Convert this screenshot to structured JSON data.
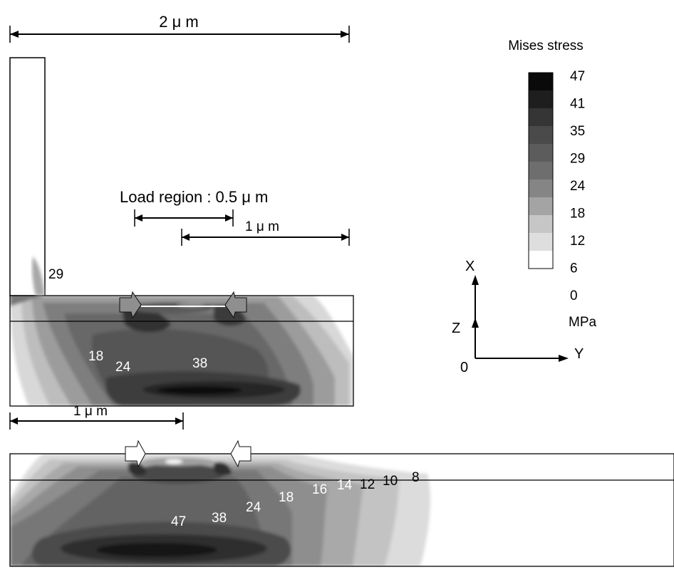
{
  "dimensions": {
    "top_width": "2 μ m",
    "load_region": "Load region : 0.5 μ m",
    "right_span": "1 μ m",
    "bottom_span": "1 μ m"
  },
  "legend": {
    "title": "Mises stress",
    "ticks": [
      "47",
      "41",
      "35",
      "29",
      "24",
      "18",
      "12",
      "6",
      "0"
    ],
    "unit": "MPa",
    "colors": [
      "#0a0a0a",
      "#1e1e1e",
      "#353535",
      "#4a4a4a",
      "#5c5c5c",
      "#6e6e6e",
      "#858585",
      "#a4a4a4",
      "#c6c6c6",
      "#dedede",
      "#ffffff"
    ]
  },
  "axes": {
    "x": "X",
    "z": "Z",
    "y": "Y",
    "origin": "0"
  },
  "top_model": {
    "labels": {
      "v29": "29",
      "v18": "18",
      "v24": "24",
      "v38": "38"
    }
  },
  "bottom_model": {
    "labels": {
      "v47": "47",
      "v38": "38",
      "v24": "24",
      "v18": "18",
      "v16": "16",
      "v14": "14",
      "v12": "12",
      "v10": "10",
      "v8": "8"
    }
  }
}
